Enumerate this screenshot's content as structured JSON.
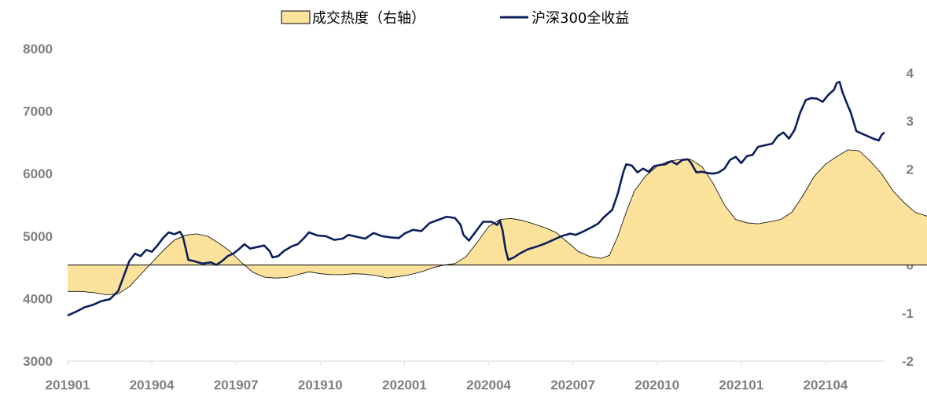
{
  "chart_data": {
    "type": "line",
    "legend": [
      {
        "label": "成交热度（右轴）",
        "kind": "area",
        "axis": "right"
      },
      {
        "label": "沪深300全收益",
        "kind": "line",
        "axis": "left"
      }
    ],
    "legend_position": "top-center",
    "x_ticks": [
      "201901",
      "201904",
      "201907",
      "201910",
      "202001",
      "202004",
      "202007",
      "202010",
      "202101",
      "202104"
    ],
    "y_left": {
      "ticks": [
        "8000",
        "7000",
        "6000",
        "5000",
        "4000",
        "3000"
      ],
      "range": [
        3000,
        8000
      ]
    },
    "y_right": {
      "ticks": [
        "4",
        "3",
        "2",
        "1",
        "0",
        "-1",
        "-2"
      ],
      "range": [
        -2,
        4
      ]
    },
    "x_range_months": [
      0,
      29.1
    ],
    "series": [
      {
        "name": "沪深300全收益",
        "axis": "left",
        "color": "#0b1f5c",
        "points": [
          [
            0.0,
            3730
          ],
          [
            0.3,
            3790
          ],
          [
            0.6,
            3860
          ],
          [
            0.9,
            3900
          ],
          [
            1.2,
            3960
          ],
          [
            1.5,
            3990
          ],
          [
            1.8,
            4120
          ],
          [
            2.0,
            4360
          ],
          [
            2.2,
            4600
          ],
          [
            2.4,
            4720
          ],
          [
            2.6,
            4680
          ],
          [
            2.8,
            4780
          ],
          [
            3.0,
            4750
          ],
          [
            3.2,
            4850
          ],
          [
            3.4,
            4970
          ],
          [
            3.6,
            5060
          ],
          [
            3.8,
            5030
          ],
          [
            4.0,
            5070
          ],
          [
            4.1,
            5000
          ],
          [
            4.2,
            4820
          ],
          [
            4.3,
            4620
          ],
          [
            4.5,
            4600
          ],
          [
            4.8,
            4560
          ],
          [
            5.1,
            4580
          ],
          [
            5.3,
            4540
          ],
          [
            5.5,
            4600
          ],
          [
            5.7,
            4680
          ],
          [
            5.9,
            4720
          ],
          [
            6.1,
            4790
          ],
          [
            6.3,
            4870
          ],
          [
            6.5,
            4800
          ],
          [
            6.8,
            4830
          ],
          [
            7.0,
            4850
          ],
          [
            7.2,
            4760
          ],
          [
            7.3,
            4660
          ],
          [
            7.5,
            4680
          ],
          [
            7.7,
            4760
          ],
          [
            8.0,
            4840
          ],
          [
            8.2,
            4870
          ],
          [
            8.4,
            4960
          ],
          [
            8.6,
            5060
          ],
          [
            8.9,
            5010
          ],
          [
            9.2,
            5000
          ],
          [
            9.5,
            4940
          ],
          [
            9.8,
            4960
          ],
          [
            10.0,
            5020
          ],
          [
            10.3,
            4990
          ],
          [
            10.6,
            4960
          ],
          [
            10.9,
            5050
          ],
          [
            11.2,
            5000
          ],
          [
            11.5,
            4980
          ],
          [
            11.8,
            4970
          ],
          [
            12.0,
            5040
          ],
          [
            12.3,
            5100
          ],
          [
            12.6,
            5080
          ],
          [
            12.9,
            5210
          ],
          [
            13.2,
            5260
          ],
          [
            13.5,
            5310
          ],
          [
            13.8,
            5290
          ],
          [
            14.0,
            5180
          ],
          [
            14.1,
            5020
          ],
          [
            14.3,
            4930
          ],
          [
            14.5,
            5050
          ],
          [
            14.8,
            5230
          ],
          [
            15.1,
            5230
          ],
          [
            15.3,
            5180
          ],
          [
            15.4,
            5250
          ],
          [
            15.5,
            5080
          ],
          [
            15.6,
            4790
          ],
          [
            15.7,
            4620
          ],
          [
            15.9,
            4660
          ],
          [
            16.1,
            4720
          ],
          [
            16.4,
            4790
          ],
          [
            16.7,
            4830
          ],
          [
            17.0,
            4880
          ],
          [
            17.3,
            4940
          ],
          [
            17.6,
            5000
          ],
          [
            17.9,
            5040
          ],
          [
            18.1,
            5020
          ],
          [
            18.4,
            5080
          ],
          [
            18.7,
            5150
          ],
          [
            18.9,
            5200
          ],
          [
            19.1,
            5300
          ],
          [
            19.4,
            5420
          ],
          [
            19.6,
            5680
          ],
          [
            19.8,
            6030
          ],
          [
            19.9,
            6150
          ],
          [
            20.1,
            6130
          ],
          [
            20.3,
            6020
          ],
          [
            20.5,
            6080
          ],
          [
            20.7,
            6030
          ],
          [
            20.9,
            6120
          ],
          [
            21.1,
            6140
          ],
          [
            21.3,
            6150
          ],
          [
            21.5,
            6200
          ],
          [
            21.7,
            6150
          ],
          [
            21.9,
            6220
          ],
          [
            22.1,
            6230
          ],
          [
            22.2,
            6180
          ],
          [
            22.4,
            6020
          ],
          [
            22.6,
            6030
          ],
          [
            22.8,
            6010
          ],
          [
            23.0,
            6000
          ],
          [
            23.2,
            6020
          ],
          [
            23.4,
            6080
          ],
          [
            23.6,
            6220
          ],
          [
            23.8,
            6270
          ],
          [
            24.0,
            6170
          ],
          [
            24.2,
            6280
          ],
          [
            24.4,
            6300
          ],
          [
            24.6,
            6430
          ],
          [
            24.9,
            6460
          ],
          [
            25.1,
            6480
          ],
          [
            25.3,
            6600
          ],
          [
            25.5,
            6660
          ],
          [
            25.7,
            6560
          ],
          [
            25.9,
            6700
          ],
          [
            26.1,
            6980
          ],
          [
            26.3,
            7180
          ],
          [
            26.5,
            7210
          ],
          [
            26.7,
            7200
          ],
          [
            26.9,
            7150
          ],
          [
            27.1,
            7260
          ],
          [
            27.3,
            7340
          ],
          [
            27.4,
            7450
          ],
          [
            27.5,
            7470
          ],
          [
            27.6,
            7310
          ],
          [
            27.8,
            7080
          ],
          [
            27.9,
            6980
          ],
          [
            28.1,
            6680
          ],
          [
            28.3,
            6640
          ],
          [
            28.5,
            6600
          ],
          [
            28.7,
            6560
          ],
          [
            28.9,
            6530
          ],
          [
            29.0,
            6620
          ],
          [
            29.1,
            6660
          ]
        ]
      },
      {
        "name": "成交热度（右轴）",
        "axis": "right",
        "fill": "#fde29b",
        "stroke": "#000000",
        "points": [
          [
            0.0,
            -0.55
          ],
          [
            0.5,
            -0.55
          ],
          [
            1.0,
            -0.58
          ],
          [
            1.4,
            -0.62
          ],
          [
            1.8,
            -0.6
          ],
          [
            2.2,
            -0.45
          ],
          [
            2.6,
            -0.2
          ],
          [
            3.0,
            0.05
          ],
          [
            3.4,
            0.3
          ],
          [
            3.8,
            0.52
          ],
          [
            4.2,
            0.62
          ],
          [
            4.6,
            0.65
          ],
          [
            5.0,
            0.6
          ],
          [
            5.4,
            0.45
          ],
          [
            5.8,
            0.28
          ],
          [
            6.2,
            0.05
          ],
          [
            6.6,
            -0.15
          ],
          [
            7.0,
            -0.25
          ],
          [
            7.4,
            -0.27
          ],
          [
            7.8,
            -0.26
          ],
          [
            8.2,
            -0.2
          ],
          [
            8.6,
            -0.14
          ],
          [
            9.0,
            -0.18
          ],
          [
            9.4,
            -0.2
          ],
          [
            9.8,
            -0.2
          ],
          [
            10.2,
            -0.18
          ],
          [
            10.6,
            -0.19
          ],
          [
            11.0,
            -0.22
          ],
          [
            11.4,
            -0.27
          ],
          [
            11.8,
            -0.24
          ],
          [
            12.2,
            -0.2
          ],
          [
            12.6,
            -0.14
          ],
          [
            13.0,
            -0.06
          ],
          [
            13.4,
            0.0
          ],
          [
            13.8,
            0.03
          ],
          [
            14.2,
            0.18
          ],
          [
            14.6,
            0.48
          ],
          [
            15.0,
            0.8
          ],
          [
            15.4,
            0.95
          ],
          [
            15.8,
            0.97
          ],
          [
            16.2,
            0.93
          ],
          [
            16.6,
            0.86
          ],
          [
            17.0,
            0.78
          ],
          [
            17.4,
            0.68
          ],
          [
            17.8,
            0.48
          ],
          [
            18.2,
            0.28
          ],
          [
            18.6,
            0.18
          ],
          [
            19.0,
            0.14
          ],
          [
            19.3,
            0.2
          ],
          [
            19.6,
            0.6
          ],
          [
            19.9,
            1.1
          ],
          [
            20.2,
            1.55
          ],
          [
            20.6,
            1.86
          ],
          [
            21.0,
            2.06
          ],
          [
            21.4,
            2.16
          ],
          [
            21.8,
            2.2
          ],
          [
            22.2,
            2.2
          ],
          [
            22.6,
            2.05
          ],
          [
            23.0,
            1.7
          ],
          [
            23.4,
            1.25
          ],
          [
            23.8,
            0.95
          ],
          [
            24.2,
            0.88
          ],
          [
            24.6,
            0.86
          ],
          [
            25.0,
            0.9
          ],
          [
            25.4,
            0.95
          ],
          [
            25.8,
            1.1
          ],
          [
            26.2,
            1.45
          ],
          [
            26.6,
            1.85
          ],
          [
            27.0,
            2.1
          ],
          [
            27.4,
            2.26
          ],
          [
            27.8,
            2.4
          ],
          [
            28.2,
            2.38
          ],
          [
            28.6,
            2.16
          ],
          [
            29.0,
            1.9
          ],
          [
            29.4,
            1.55
          ],
          [
            29.8,
            1.3
          ],
          [
            30.2,
            1.1
          ],
          [
            30.6,
            1.02
          ],
          [
            31.0,
            0.95
          ]
        ]
      }
    ]
  }
}
